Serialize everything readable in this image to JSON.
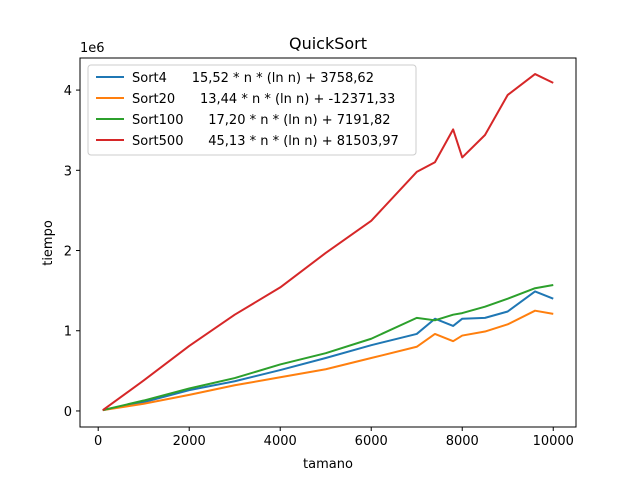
{
  "chart_data": {
    "type": "line",
    "title": "QuickSort",
    "xlabel": "tamano",
    "ylabel": "tiempo",
    "y_multiplier_label": "1e6",
    "xlim": [
      -400,
      10500
    ],
    "ylim": [
      -200000,
      4400000
    ],
    "x_ticks": [
      0,
      2000,
      4000,
      6000,
      8000,
      10000
    ],
    "x_tick_labels": [
      "0",
      "2000",
      "4000",
      "6000",
      "8000",
      "10000"
    ],
    "y_ticks": [
      0,
      1000000,
      2000000,
      3000000,
      4000000
    ],
    "y_tick_labels": [
      "0",
      "1",
      "2",
      "3",
      "4"
    ],
    "grid": false,
    "legend_position": "upper-left",
    "x": [
      100,
      1000,
      2000,
      3000,
      4000,
      5000,
      6000,
      7000,
      7400,
      7800,
      8000,
      8500,
      9000,
      9600,
      10000
    ],
    "series": [
      {
        "name": "Sort4",
        "legend_label": "Sort4      15,52 * n * (ln n) + 3758,62",
        "color": "#1f77b4",
        "values": [
          10000,
          110000,
          260000,
          370000,
          510000,
          660000,
          820000,
          960000,
          1150000,
          1060000,
          1150000,
          1160000,
          1240000,
          1490000,
          1400000
        ]
      },
      {
        "name": "Sort20",
        "legend_label": "Sort20      13,44 * n * (ln n) + -12371,33",
        "color": "#ff7f0e",
        "values": [
          10000,
          90000,
          200000,
          320000,
          420000,
          520000,
          660000,
          800000,
          960000,
          870000,
          940000,
          990000,
          1080000,
          1250000,
          1210000
        ]
      },
      {
        "name": "Sort100",
        "legend_label": "Sort100      17,20 * n * (ln n) + 7191,82",
        "color": "#2ca02c",
        "values": [
          10000,
          130000,
          280000,
          410000,
          580000,
          720000,
          900000,
          1160000,
          1130000,
          1200000,
          1220000,
          1300000,
          1400000,
          1530000,
          1570000
        ]
      },
      {
        "name": "Sort500",
        "legend_label": "Sort500      45,13 * n * (ln n) + 81503,97",
        "color": "#d62728",
        "values": [
          10000,
          380000,
          810000,
          1200000,
          1540000,
          1970000,
          2370000,
          2980000,
          3100000,
          3510000,
          3160000,
          3440000,
          3940000,
          4200000,
          4090000
        ]
      }
    ]
  }
}
